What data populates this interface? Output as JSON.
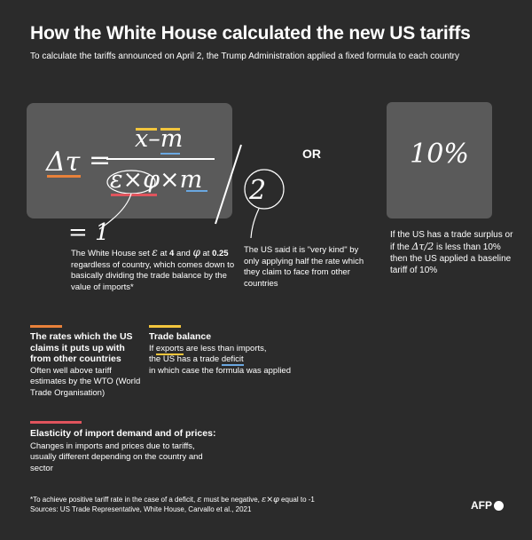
{
  "header": {
    "title": "How the White House calculated the new US tariffs",
    "subtitle": "To calculate the tariffs announced on April 2, the Trump Administration applied a fixed formula to each country"
  },
  "formula": {
    "delta_tau": "Δτ",
    "equals": "=",
    "numerator": "x–m",
    "denominator": "ε×φ×m",
    "divisor": "2",
    "equals_one": "= 1",
    "or_label": "OR",
    "baseline": "10%"
  },
  "notes": {
    "values": {
      "pre": "The White House set ",
      "eps": "ε",
      "at": " at ",
      "eps_val": "4",
      "and": " and ",
      "phi": "φ",
      "at2": " at ",
      "phi_val": "0.25",
      "rest": " regardless of country, which comes down to basically dividing the trade balance by the value of imports*"
    },
    "kind": "The US said it is \"very kind\" by only applying half the rate which they claim to face from other countries",
    "baseline": {
      "pre": "If the US has a trade surplus or if the ",
      "sym": "Δτ/2",
      "rest": " is less than 10% then the US applied a baseline tariff of 10%"
    }
  },
  "sections": {
    "rates": {
      "title": "The rates which the US claims it puts up with from other countries",
      "body": "Often well above tariff estimates by the WTO (World Trade Organisation)"
    },
    "trade": {
      "title": "Trade balance",
      "line1_pre": "If ",
      "line1_ul": "exports",
      "line1_post": " are less than imports,",
      "line2_pre": "the US has a trade ",
      "line2_ul": "deficit",
      "line3": "in which case the formula was applied"
    },
    "elasticity": {
      "title": "Elasticity of import demand and of prices:",
      "body": "Changes in imports and prices due to tariffs, usually different depending on the country and sector"
    }
  },
  "footer": {
    "note_pre": "*To achieve positive tariff rate in the case of a deficit, ",
    "note_eps": "ε",
    "note_mid": " must be negative, ",
    "note_sym": "ε×φ",
    "note_post": " equal to  -1",
    "sources": "Sources: US Trade Representative, White House, Carvallo et al., 2021",
    "logo": "AFP"
  },
  "colors": {
    "background": "#2b2b2b",
    "box": "#5a5a5a",
    "orange": "#e8813a",
    "yellow": "#f2c53d",
    "blue": "#6aa7e0",
    "red": "#e0545d"
  }
}
